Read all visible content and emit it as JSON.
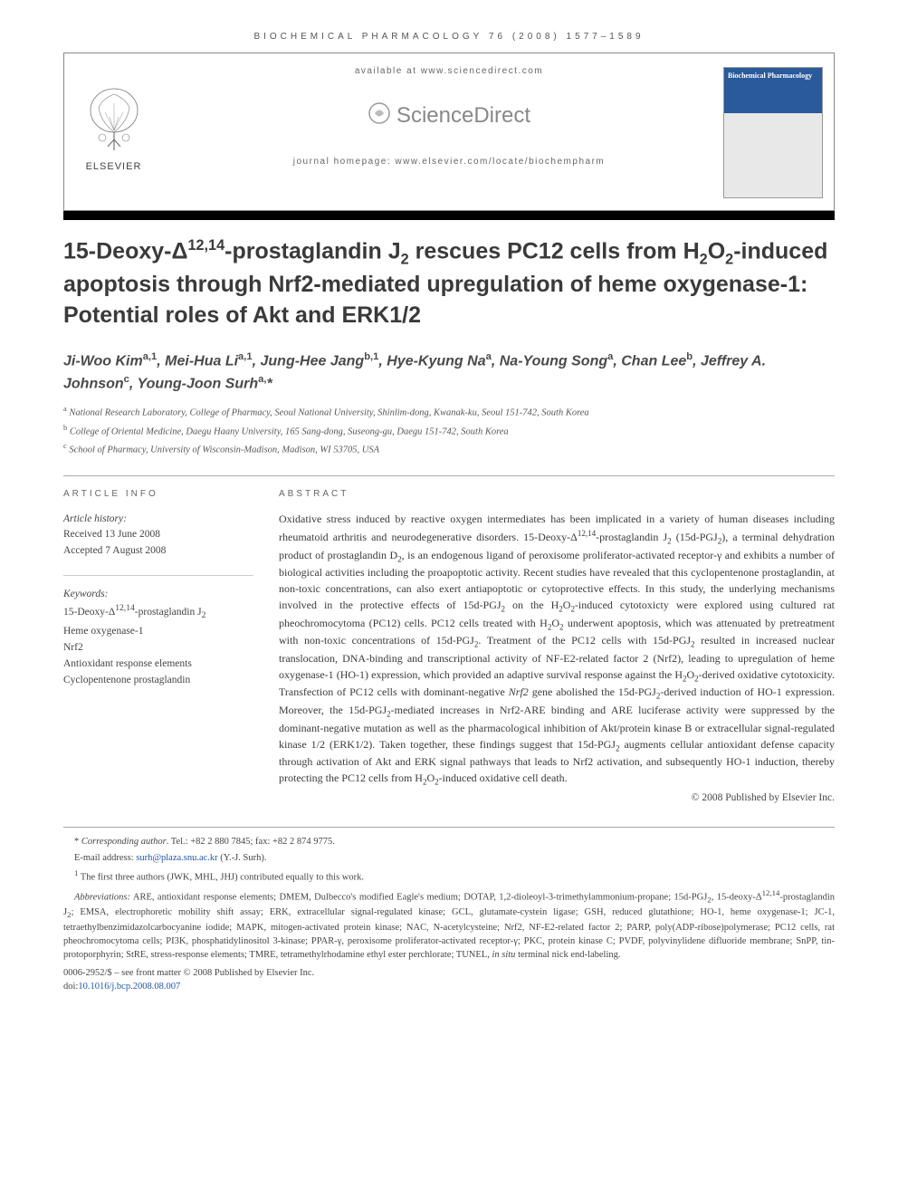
{
  "running_head": "BIOCHEMICAL PHARMACOLOGY 76 (2008) 1577–1589",
  "header": {
    "available_at": "available at www.sciencedirect.com",
    "sd_label": "ScienceDirect",
    "homepage": "journal homepage: www.elsevier.com/locate/biochempharm",
    "elsevier": "ELSEVIER",
    "cover_title": "Biochemical Pharmacology"
  },
  "title_html": "15-Deoxy-Δ<sup>12,14</sup>-prostaglandin J<sub>2</sub> rescues PC12 cells from H<sub>2</sub>O<sub>2</sub>-induced apoptosis through Nrf2-mediated upregulation of heme oxygenase-1: Potential roles of Akt and ERK1/2",
  "authors_html": "Ji-Woo Kim<sup>a,1</sup>, Mei-Hua Li<sup>a,1</sup>, Jung-Hee Jang<sup>b,1</sup>, Hye-Kyung Na<sup>a</sup>, Na-Young Song<sup>a</sup>, Chan Lee<sup>b</sup>, Jeffrey A. Johnson<sup>c</sup>, Young-Joon Surh<sup>a,</sup>*",
  "affiliations": [
    "<sup>a</sup> National Research Laboratory, College of Pharmacy, Seoul National University, Shinlim-dong, Kwanak-ku, Seoul 151-742, South Korea",
    "<sup>b</sup> College of Oriental Medicine, Daegu Haany University, 165 Sang-dong, Suseong-gu, Daegu 151-742, South Korea",
    "<sup>c</sup> School of Pharmacy, University of Wisconsin-Madison, Madison, WI 53705, USA"
  ],
  "article_info": {
    "heading": "ARTICLE INFO",
    "history_label": "Article history:",
    "received": "Received 13 June 2008",
    "accepted": "Accepted 7 August 2008",
    "keywords_label": "Keywords:",
    "keywords": [
      "15-Deoxy-Δ<sup>12,14</sup>-prostaglandin J<sub>2</sub>",
      "Heme oxygenase-1",
      "Nrf2",
      "Antioxidant response elements",
      "Cyclopentenone prostaglandin"
    ]
  },
  "abstract": {
    "heading": "ABSTRACT",
    "text_html": "Oxidative stress induced by reactive oxygen intermediates has been implicated in a variety of human diseases including rheumatoid arthritis and neurodegenerative disorders. 15-Deoxy-Δ<sup>12,14</sup>-prostaglandin J<sub>2</sub> (15d-PGJ<sub>2</sub>), a terminal dehydration product of prostaglandin D<sub>2</sub>, is an endogenous ligand of peroxisome proliferator-activated receptor-γ and exhibits a number of biological activities including the proapoptotic activity. Recent studies have revealed that this cyclopentenone prostaglandin, at non-toxic concentrations, can also exert antiapoptotic or cytoprotective effects. In this study, the underlying mechanisms involved in the protective effects of 15d-PGJ<sub>2</sub> on the H<sub>2</sub>O<sub>2</sub>-induced cytotoxicty were explored using cultured rat pheochromocytoma (PC12) cells. PC12 cells treated with H<sub>2</sub>O<sub>2</sub> underwent apoptosis, which was attenuated by pretreatment with non-toxic concentrations of 15d-PGJ<sub>2</sub>. Treatment of the PC12 cells with 15d-PGJ<sub>2</sub> resulted in increased nuclear translocation, DNA-binding and transcriptional activity of NF-E2-related factor 2 (Nrf2), leading to upregulation of heme oxygenase-1 (HO-1) expression, which provided an adaptive survival response against the H<sub>2</sub>O<sub>2</sub>-derived oxidative cytotoxicity. Transfection of PC12 cells with dominant-negative <i>Nrf2</i> gene abolished the 15d-PGJ<sub>2</sub>-derived induction of HO-1 expression. Moreover, the 15d-PGJ<sub>2</sub>-mediated increases in Nrf2-ARE binding and ARE luciferase activity were suppressed by the dominant-negative mutation as well as the pharmacological inhibition of Akt/protein kinase B or extracellular signal-regulated kinase 1/2 (ERK1/2). Taken together, these findings suggest that 15d-PGJ<sub>2</sub> augments cellular antioxidant defense capacity through activation of Akt and ERK signal pathways that leads to Nrf2 activation, and subsequently HO-1 induction, thereby protecting the PC12 cells from H<sub>2</sub>O<sub>2</sub>-induced oxidative cell death.",
    "copyright": "© 2008 Published by Elsevier Inc."
  },
  "footnotes": {
    "corr": "* <i>Corresponding author</i>. Tel.: +82 2 880 7845; fax: +82 2 874 9775.",
    "email_label": "E-mail address:",
    "email": "surh@plaza.snu.ac.kr",
    "email_who": "(Y.-J. Surh).",
    "equal": "<sup>1</sup> The first three authors (JWK, MHL, JHJ) contributed equally to this work.",
    "abbrev_html": "<i>Abbreviations:</i> ARE, antioxidant response elements; DMEM, Dulbecco's modified Eagle's medium; DOTAP, 1,2-dioleoyl-3-trimethylammonium-propane; 15d-PGJ<sub>2</sub>, 15-deoxy-Δ<sup>12,14</sup>-prostaglandin J<sub>2</sub>; EMSA, electrophoretic mobility shift assay; ERK, extracellular signal-regulated kinase; GCL, glutamate-cystein ligase; GSH, reduced glutathione; HO-1, heme oxygenase-1; JC-1, tetraethylbenzimidazolcarbocyanine iodide; MAPK, mitogen-activated protein kinase; NAC, N-acetylcysteine; Nrf2, NF-E2-related factor 2; PARP, poly(ADP-ribose)polymerase; PC12 cells, rat pheochromocytoma cells; PI3K, phosphatidylinositol 3-kinase; PPAR-γ, peroxisome proliferator-activated receptor-γ; PKC, protein kinase C; PVDF, polyvinylidene difluoride membrane; SnPP, tin-protoporphyrin; StRE, stress-response elements; TMRE, tetramethylrhodamine ethyl ester perchlorate; TUNEL, <i>in situ</i> terminal nick end-labeling.",
    "pub": "0006-2952/$ – see front matter © 2008 Published by Elsevier Inc.",
    "doi_label": "doi:",
    "doi": "10.1016/j.bcp.2008.08.007"
  },
  "colors": {
    "link": "#2255aa",
    "text": "#333333",
    "rule": "#aaaaaa"
  }
}
